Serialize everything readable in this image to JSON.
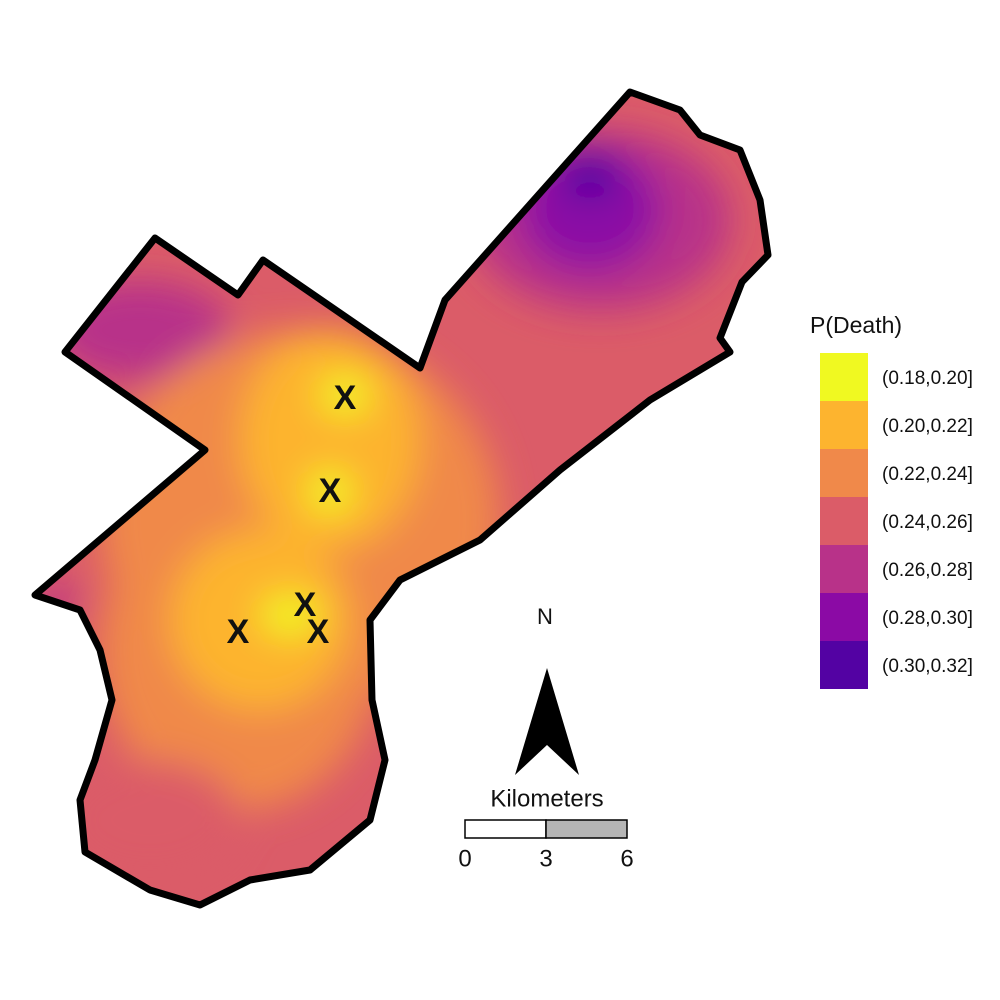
{
  "legend": {
    "title": "P(Death)",
    "entries": [
      {
        "label": "(0.18,0.20]",
        "color": "#f0f921"
      },
      {
        "label": "(0.20,0.22]",
        "color": "#fdb42f"
      },
      {
        "label": "(0.22,0.24]",
        "color": "#f0894a"
      },
      {
        "label": "(0.24,0.26]",
        "color": "#db5c68"
      },
      {
        "label": "(0.26,0.28]",
        "color": "#b83289"
      },
      {
        "label": "(0.28,0.30]",
        "color": "#8b0aa5"
      },
      {
        "label": "(0.30,0.32]",
        "color": "#5302a3"
      }
    ]
  },
  "north_label": "N",
  "scale": {
    "title": "Kilometers",
    "ticks": [
      0,
      3,
      6
    ]
  },
  "markers": [
    "X",
    "X",
    "X",
    "X",
    "X"
  ]
}
